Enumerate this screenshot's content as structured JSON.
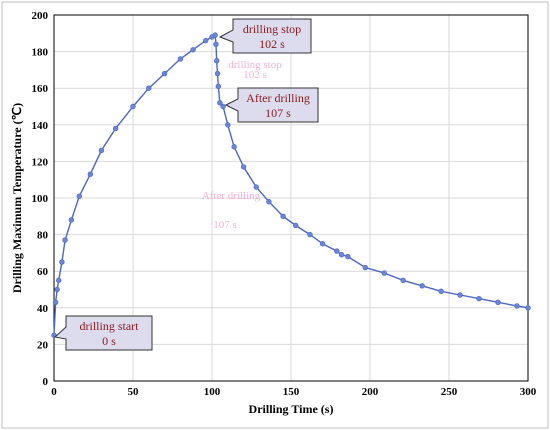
{
  "chart_data": {
    "type": "line",
    "xlabel": "Drilling Time (s)",
    "ylabel": "Drilling Maximum Temperature (℃)",
    "xlim": [
      0,
      300
    ],
    "ylim": [
      0,
      200
    ],
    "xticks": [
      0,
      50,
      100,
      150,
      200,
      250,
      300
    ],
    "yticks": [
      0,
      20,
      40,
      60,
      80,
      100,
      120,
      140,
      160,
      180,
      200
    ],
    "grid": true,
    "line_color": "#4a67c5",
    "marker_color": "#6a86d8",
    "series": [
      {
        "x": [
          0,
          1,
          2,
          3,
          5,
          7,
          11,
          16,
          23,
          30,
          39,
          50,
          60,
          70,
          80,
          88,
          96,
          100,
          102,
          102.5,
          103,
          103.5,
          104,
          105,
          107,
          110,
          114,
          120,
          128,
          136,
          145,
          153,
          162,
          170,
          179,
          182,
          186,
          197,
          209,
          221,
          233,
          245,
          257,
          269,
          281,
          293,
          300
        ],
        "y": [
          25,
          43,
          50,
          55,
          65,
          77,
          88,
          101,
          113,
          126,
          138,
          150,
          160,
          168,
          176,
          181,
          186,
          188,
          189,
          184,
          175,
          168,
          161,
          152,
          150,
          140,
          128,
          117,
          106,
          98,
          90,
          85,
          80,
          75,
          71,
          69,
          68,
          62,
          59,
          55,
          52,
          49,
          47,
          45,
          43,
          41,
          40
        ]
      }
    ],
    "annotations": [
      {
        "key": "start",
        "lines": [
          "drilling start",
          "0 s"
        ],
        "x": 0,
        "y": 25
      },
      {
        "key": "stop",
        "lines": [
          "drilling stop",
          "102 s"
        ],
        "x": 102,
        "y": 189
      },
      {
        "key": "after",
        "lines": [
          "After drilling",
          "107 s"
        ],
        "x": 107,
        "y": 150
      }
    ],
    "watermarks": [
      "drilling stop",
      "102 s",
      "After drilling",
      "107 s"
    ]
  }
}
